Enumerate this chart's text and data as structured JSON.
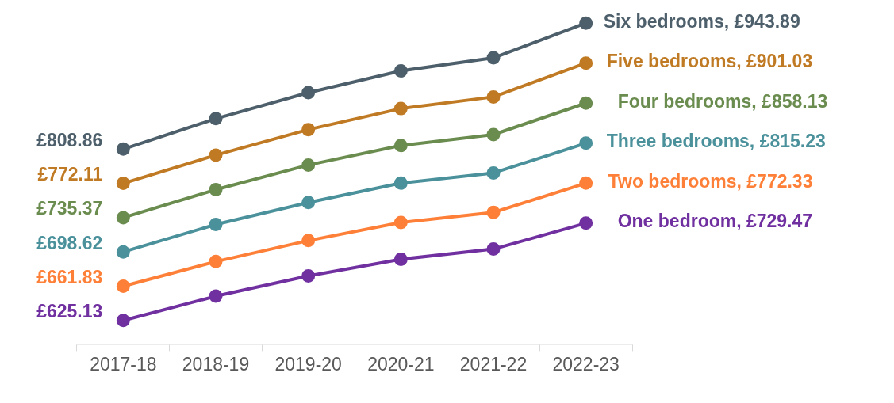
{
  "chart_data": {
    "type": "line",
    "categories": [
      "2017-18",
      "2018-19",
      "2019-20",
      "2020-21",
      "2021-22",
      "2022-23"
    ],
    "tick_labels": "x",
    "marker": "circle",
    "grid": false,
    "legend": false,
    "series": [
      {
        "color": "#4d5f6b",
        "values": [
          808.86,
          841.5,
          869.4,
          892.7,
          906.7,
          943.89
        ],
        "value_labels": [
          "£808.86",
          null,
          null,
          null,
          null,
          "Six bedrooms, £943.89"
        ]
      },
      {
        "color": "#c07a23",
        "values": [
          772.11,
          802.4,
          829.8,
          852.3,
          864.8,
          901.03
        ],
        "value_labels": [
          "£772.11",
          null,
          null,
          null,
          null,
          "Five bedrooms, £901.03"
        ]
      },
      {
        "color": "#6a8c4f",
        "values": [
          735.37,
          765.4,
          791.8,
          812.7,
          824.4,
          858.13
        ],
        "value_labels": [
          "£735.37",
          null,
          null,
          null,
          null,
          "Four bedrooms, £858.13"
        ]
      },
      {
        "color": "#4a919b",
        "values": [
          698.62,
          728.1,
          751.6,
          772.4,
          783.3,
          815.23
        ],
        "value_labels": [
          "£698.62",
          null,
          null,
          null,
          null,
          "Three bedrooms, £815.23"
        ]
      },
      {
        "color": "#fe8038",
        "values": [
          661.83,
          688.3,
          710.8,
          730.2,
          741.0,
          772.33
        ],
        "value_labels": [
          "£661.83",
          null,
          null,
          null,
          null,
          "Two bedrooms, £772.33"
        ]
      },
      {
        "color": "#7030a0",
        "values": [
          625.13,
          651.2,
          672.9,
          690.8,
          701.7,
          729.47
        ],
        "value_labels": [
          "£625.13",
          null,
          null,
          null,
          null,
          "One bedroom, £729.47"
        ]
      }
    ]
  }
}
